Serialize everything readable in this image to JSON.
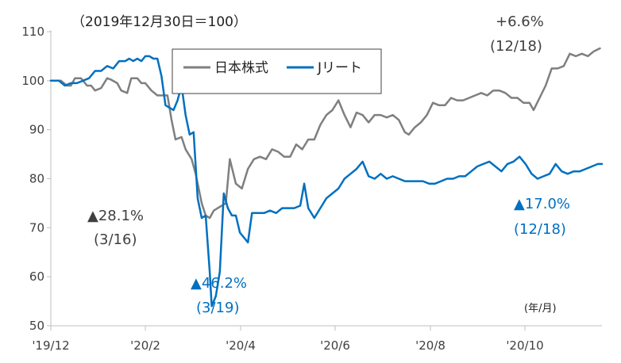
{
  "chart_data": {
    "type": "line",
    "note": "（2019年12月30日＝100）",
    "unit_label": "(年/月)",
    "ylim": [
      50,
      110
    ],
    "y_ticks": [
      50,
      60,
      70,
      80,
      90,
      100,
      110
    ],
    "x_ticks": [
      "'19/12",
      "'20/2",
      "'20/4",
      "'20/6",
      "'20/8",
      "'20/10"
    ],
    "legend": [
      "日本株式",
      "Jリート"
    ],
    "legend_position": "top-center",
    "colors": {
      "nikkei": "#7f7f7f",
      "jreit": "#0070c0",
      "axis": "#bfbfbf",
      "text": "#404040"
    },
    "series": [
      {
        "name": "日本株式",
        "color": "#7f7f7f",
        "points": [
          [
            0,
            100.0
          ],
          [
            5,
            100.0
          ],
          [
            8,
            99.0
          ],
          [
            10,
            99.0
          ],
          [
            12,
            100.5
          ],
          [
            15,
            100.5
          ],
          [
            18,
            99.0
          ],
          [
            20,
            99.0
          ],
          [
            22,
            98.0
          ],
          [
            25,
            98.5
          ],
          [
            28,
            100.5
          ],
          [
            30,
            100.2
          ],
          [
            33,
            99.5
          ],
          [
            35,
            98.0
          ],
          [
            38,
            97.5
          ],
          [
            40,
            100.5
          ],
          [
            43,
            100.5
          ],
          [
            45,
            99.5
          ],
          [
            47,
            99.5
          ],
          [
            50,
            98.0
          ],
          [
            53,
            97.0
          ],
          [
            55,
            97.0
          ],
          [
            58,
            97.0
          ],
          [
            60,
            92.0
          ],
          [
            62,
            88.0
          ],
          [
            65,
            88.5
          ],
          [
            67,
            86.0
          ],
          [
            70,
            84.0
          ],
          [
            72,
            81.0
          ],
          [
            75,
            75.0
          ],
          [
            77,
            72.5
          ],
          [
            79,
            72.0
          ],
          [
            81,
            73.5
          ],
          [
            83,
            74.0
          ],
          [
            85,
            74.5
          ],
          [
            87,
            75.0
          ],
          [
            89,
            84.0
          ],
          [
            92,
            79.0
          ],
          [
            95,
            78.0
          ],
          [
            98,
            82.0
          ],
          [
            101,
            84.0
          ],
          [
            104,
            84.5
          ],
          [
            107,
            84.0
          ],
          [
            110,
            86.0
          ],
          [
            113,
            85.5
          ],
          [
            116,
            84.5
          ],
          [
            119,
            84.5
          ],
          [
            122,
            87.0
          ],
          [
            125,
            86.0
          ],
          [
            128,
            88.0
          ],
          [
            131,
            88.0
          ],
          [
            134,
            91.0
          ],
          [
            137,
            93.0
          ],
          [
            140,
            94.0
          ],
          [
            143,
            96.0
          ],
          [
            146,
            93.0
          ],
          [
            149,
            90.5
          ],
          [
            152,
            93.5
          ],
          [
            155,
            93.0
          ],
          [
            158,
            91.5
          ],
          [
            161,
            93.0
          ],
          [
            164,
            93.0
          ],
          [
            167,
            92.5
          ],
          [
            170,
            93.0
          ],
          [
            173,
            92.0
          ],
          [
            176,
            89.5
          ],
          [
            178,
            89.0
          ],
          [
            181,
            90.5
          ],
          [
            184,
            91.5
          ],
          [
            187,
            93.0
          ],
          [
            190,
            95.5
          ],
          [
            193,
            95.0
          ],
          [
            196,
            95.0
          ],
          [
            199,
            96.5
          ],
          [
            202,
            96.0
          ],
          [
            205,
            96.0
          ],
          [
            208,
            96.5
          ],
          [
            211,
            97.0
          ],
          [
            214,
            97.5
          ],
          [
            217,
            97.0
          ],
          [
            220,
            98.0
          ],
          [
            223,
            98.0
          ],
          [
            226,
            97.5
          ],
          [
            229,
            96.5
          ],
          [
            232,
            96.5
          ],
          [
            235,
            95.5
          ],
          [
            238,
            95.5
          ],
          [
            240,
            94.0
          ],
          [
            243,
            96.5
          ],
          [
            246,
            99.0
          ],
          [
            249,
            102.5
          ],
          [
            252,
            102.5
          ],
          [
            255,
            103.0
          ],
          [
            258,
            105.5
          ],
          [
            261,
            105.0
          ],
          [
            264,
            105.5
          ],
          [
            267,
            105.0
          ],
          [
            270,
            106.0
          ],
          [
            273,
            106.6
          ]
        ]
      },
      {
        "name": "Jリート",
        "color": "#0070c0",
        "points": [
          [
            0,
            100.0
          ],
          [
            4,
            100.0
          ],
          [
            7,
            99.0
          ],
          [
            10,
            99.5
          ],
          [
            13,
            99.5
          ],
          [
            16,
            100.0
          ],
          [
            19,
            100.5
          ],
          [
            22,
            102.0
          ],
          [
            25,
            102.0
          ],
          [
            28,
            103.0
          ],
          [
            31,
            102.5
          ],
          [
            34,
            104.0
          ],
          [
            37,
            104.0
          ],
          [
            39,
            104.5
          ],
          [
            41,
            104.0
          ],
          [
            43,
            104.5
          ],
          [
            45,
            104.0
          ],
          [
            47,
            105.0
          ],
          [
            49,
            105.0
          ],
          [
            51,
            104.5
          ],
          [
            53,
            104.5
          ],
          [
            55,
            101.0
          ],
          [
            57,
            95.0
          ],
          [
            59,
            94.5
          ],
          [
            61,
            94.0
          ],
          [
            63,
            96.0
          ],
          [
            65,
            99.0
          ],
          [
            67,
            93.0
          ],
          [
            69,
            89.0
          ],
          [
            71,
            89.5
          ],
          [
            73,
            76.0
          ],
          [
            75,
            72.0
          ],
          [
            77,
            72.5
          ],
          [
            79,
            61.0
          ],
          [
            80,
            54.0
          ],
          [
            82,
            56.0
          ],
          [
            84,
            61.0
          ],
          [
            86,
            77.0
          ],
          [
            88,
            74.0
          ],
          [
            90,
            72.5
          ],
          [
            92,
            72.5
          ],
          [
            94,
            69.0
          ],
          [
            96,
            68.0
          ],
          [
            98,
            67.0
          ],
          [
            100,
            73.0
          ],
          [
            103,
            73.0
          ],
          [
            106,
            73.0
          ],
          [
            109,
            73.5
          ],
          [
            112,
            73.0
          ],
          [
            115,
            74.0
          ],
          [
            118,
            74.0
          ],
          [
            121,
            74.0
          ],
          [
            124,
            74.5
          ],
          [
            126,
            79.0
          ],
          [
            128,
            74.0
          ],
          [
            131,
            72.0
          ],
          [
            134,
            74.0
          ],
          [
            137,
            76.0
          ],
          [
            140,
            77.0
          ],
          [
            143,
            78.0
          ],
          [
            146,
            80.0
          ],
          [
            149,
            81.0
          ],
          [
            152,
            82.0
          ],
          [
            155,
            83.5
          ],
          [
            158,
            80.5
          ],
          [
            161,
            80.0
          ],
          [
            164,
            81.0
          ],
          [
            167,
            80.0
          ],
          [
            170,
            80.5
          ],
          [
            173,
            80.0
          ],
          [
            176,
            79.5
          ],
          [
            179,
            79.5
          ],
          [
            182,
            79.5
          ],
          [
            185,
            79.5
          ],
          [
            188,
            79.0
          ],
          [
            191,
            79.0
          ],
          [
            194,
            79.5
          ],
          [
            197,
            80.0
          ],
          [
            200,
            80.0
          ],
          [
            203,
            80.5
          ],
          [
            206,
            80.5
          ],
          [
            209,
            81.5
          ],
          [
            212,
            82.5
          ],
          [
            215,
            83.0
          ],
          [
            218,
            83.5
          ],
          [
            221,
            82.5
          ],
          [
            224,
            81.5
          ],
          [
            227,
            83.0
          ],
          [
            230,
            83.5
          ],
          [
            233,
            84.5
          ],
          [
            236,
            83.0
          ],
          [
            239,
            81.0
          ],
          [
            242,
            80.0
          ],
          [
            245,
            80.5
          ],
          [
            248,
            81.0
          ],
          [
            251,
            83.0
          ],
          [
            254,
            81.5
          ],
          [
            257,
            81.0
          ],
          [
            260,
            81.5
          ],
          [
            263,
            81.5
          ],
          [
            266,
            82.0
          ],
          [
            269,
            82.5
          ],
          [
            272,
            83.0
          ],
          [
            274,
            83.0
          ]
        ]
      }
    ],
    "annotations": [
      {
        "id": "nikkei_drop_pct",
        "text": "▲28.1%",
        "color": "#404040"
      },
      {
        "id": "nikkei_drop_date",
        "text": "(3/16)",
        "color": "#404040"
      },
      {
        "id": "jreit_drop_pct",
        "text": "▲46.2%",
        "color": "#0070c0"
      },
      {
        "id": "jreit_drop_date",
        "text": "(3/19)",
        "color": "#0070c0"
      },
      {
        "id": "nikkei_now_pct",
        "text": "+6.6%",
        "color": "#404040"
      },
      {
        "id": "nikkei_now_date",
        "text": "(12/18)",
        "color": "#404040"
      },
      {
        "id": "jreit_now_pct",
        "text": "▲17.0%",
        "color": "#0070c0"
      },
      {
        "id": "jreit_now_date",
        "text": "(12/18)",
        "color": "#0070c0"
      }
    ]
  }
}
